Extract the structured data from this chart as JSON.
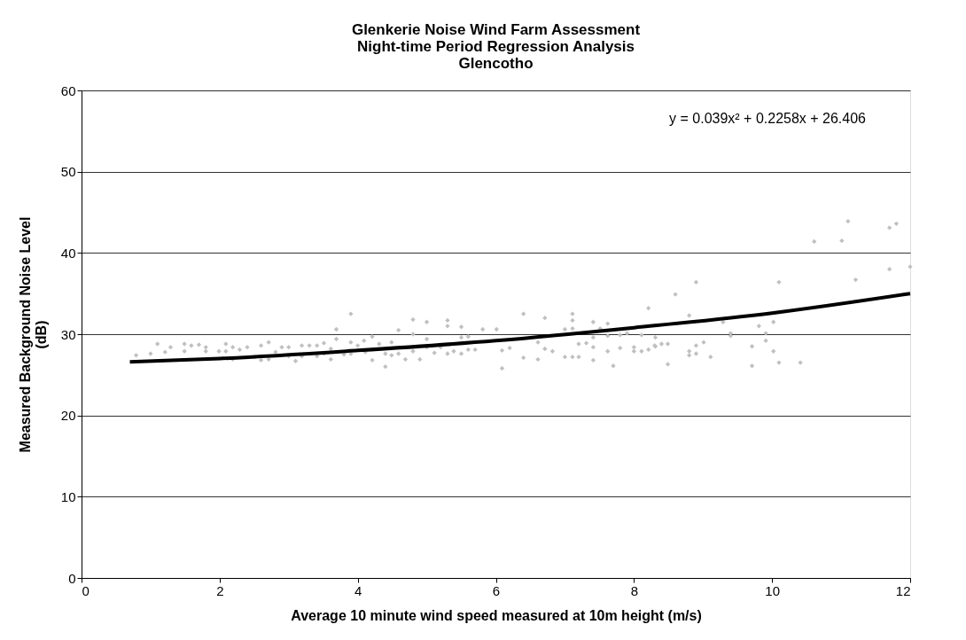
{
  "chart_data": {
    "type": "scatter",
    "title": [
      "Glenkerie Noise Wind Farm Assessment",
      "Night-time Period Regression Analysis",
      "Glencotho"
    ],
    "xlabel": "Average 10 minute wind speed measured at 10m height (m/s)",
    "ylabel": "Measured Background Noise Level (dB)",
    "xlim": [
      0,
      12
    ],
    "xticks": [
      0,
      2,
      4,
      6,
      8,
      10,
      12
    ],
    "ylim": [
      0,
      60
    ],
    "yticks": [
      0,
      10,
      20,
      30,
      40,
      50,
      60
    ],
    "grid": "y",
    "legend": false,
    "marker": "diamond",
    "annotations": [
      "y = 0.039x² + 0.2258x + 26.406"
    ],
    "series": [
      {
        "color": "#c0c0c0",
        "x": [
          0.79,
          1.0,
          1.1,
          1.21,
          1.29,
          1.49,
          1.49,
          1.59,
          1.7,
          1.8,
          1.8,
          1.99,
          2.09,
          2.09,
          2.19,
          2.19,
          2.29,
          2.4,
          2.51,
          2.6,
          2.6,
          2.71,
          2.71,
          2.81,
          2.9,
          3.0,
          3.0,
          3.1,
          3.19,
          3.19,
          3.3,
          3.41,
          3.41,
          3.51,
          3.51,
          3.61,
          3.61,
          3.69,
          3.69,
          3.8,
          3.9,
          3.9,
          3.9,
          4.0,
          4.09,
          4.11,
          4.21,
          4.21,
          4.31,
          4.4,
          4.4,
          4.49,
          4.49,
          4.59,
          4.59,
          4.69,
          4.8,
          4.8,
          4.8,
          4.9,
          5.0,
          5.0,
          5.0,
          5.11,
          5.2,
          5.3,
          5.3,
          5.3,
          5.39,
          5.5,
          5.5,
          5.5,
          5.6,
          5.6,
          5.7,
          5.81,
          6.01,
          6.09,
          6.09,
          6.2,
          6.4,
          6.4,
          6.61,
          6.61,
          6.71,
          6.71,
          6.82,
          7.0,
          7.0,
          7.11,
          7.11,
          7.11,
          7.11,
          7.2,
          7.2,
          7.31,
          7.41,
          7.41,
          7.41,
          7.41,
          7.51,
          7.62,
          7.62,
          7.62,
          7.7,
          7.8,
          7.8,
          7.9,
          8.0,
          8.0,
          8.11,
          8.11,
          8.21,
          8.21,
          8.3,
          8.31,
          8.31,
          8.4,
          8.49,
          8.49,
          8.6,
          8.8,
          8.8,
          8.8,
          8.9,
          8.9,
          8.9,
          9.01,
          9.11,
          9.29,
          9.4,
          9.4,
          9.71,
          9.71,
          9.81,
          9.91,
          9.91,
          10.02,
          10.02,
          10.1,
          10.1,
          10.41,
          10.61,
          11.01,
          11.1,
          11.21,
          11.7,
          11.7,
          11.8,
          12.0
        ],
        "values": [
          27.4,
          27.6,
          28.8,
          27.8,
          28.4,
          28.8,
          27.9,
          28.6,
          28.7,
          28.4,
          27.9,
          27.9,
          28.8,
          27.9,
          28.4,
          26.9,
          28.1,
          28.4,
          27.2,
          28.6,
          26.8,
          29.0,
          26.9,
          27.8,
          28.4,
          28.4,
          27.3,
          26.7,
          28.6,
          27.3,
          28.6,
          28.6,
          27.3,
          28.9,
          27.6,
          28.2,
          26.9,
          30.6,
          29.4,
          27.5,
          32.5,
          29.0,
          27.6,
          28.6,
          29.2,
          27.8,
          29.7,
          26.8,
          28.8,
          27.6,
          26.0,
          29.0,
          27.4,
          30.5,
          27.6,
          26.9,
          31.8,
          30.0,
          27.9,
          26.9,
          31.5,
          29.4,
          28.4,
          27.7,
          28.4,
          31.7,
          31.0,
          27.6,
          27.9,
          30.9,
          29.6,
          27.6,
          29.7,
          28.1,
          28.1,
          30.6,
          30.6,
          28.0,
          25.8,
          28.3,
          32.5,
          27.1,
          29.0,
          26.9,
          32.0,
          28.2,
          27.9,
          27.2,
          30.6,
          32.5,
          31.7,
          30.7,
          27.2,
          28.8,
          27.2,
          28.9,
          31.5,
          29.6,
          28.4,
          26.8,
          30.7,
          31.3,
          29.8,
          27.9,
          26.1,
          29.9,
          28.3,
          30.1,
          28.4,
          27.9,
          29.9,
          27.9,
          33.2,
          28.1,
          28.6,
          29.6,
          28.5,
          28.8,
          28.8,
          26.3,
          34.9,
          32.3,
          27.9,
          27.4,
          36.4,
          28.6,
          27.6,
          29.0,
          27.2,
          31.5,
          30.1,
          29.8,
          28.5,
          26.1,
          31.0,
          30.1,
          29.2,
          31.5,
          27.9,
          36.4,
          26.5,
          26.5,
          41.4,
          41.5,
          43.9,
          36.7,
          43.1,
          38.0,
          43.6,
          38.3
        ]
      },
      {
        "type": "line",
        "color": "#000000",
        "marker": "none",
        "line_style": "solid",
        "x": [
          0.7,
          2,
          4,
          6,
          8,
          10,
          12
        ],
        "values": [
          26.6,
          27.0,
          28.0,
          29.2,
          30.8,
          32.6,
          35.0
        ]
      }
    ]
  }
}
